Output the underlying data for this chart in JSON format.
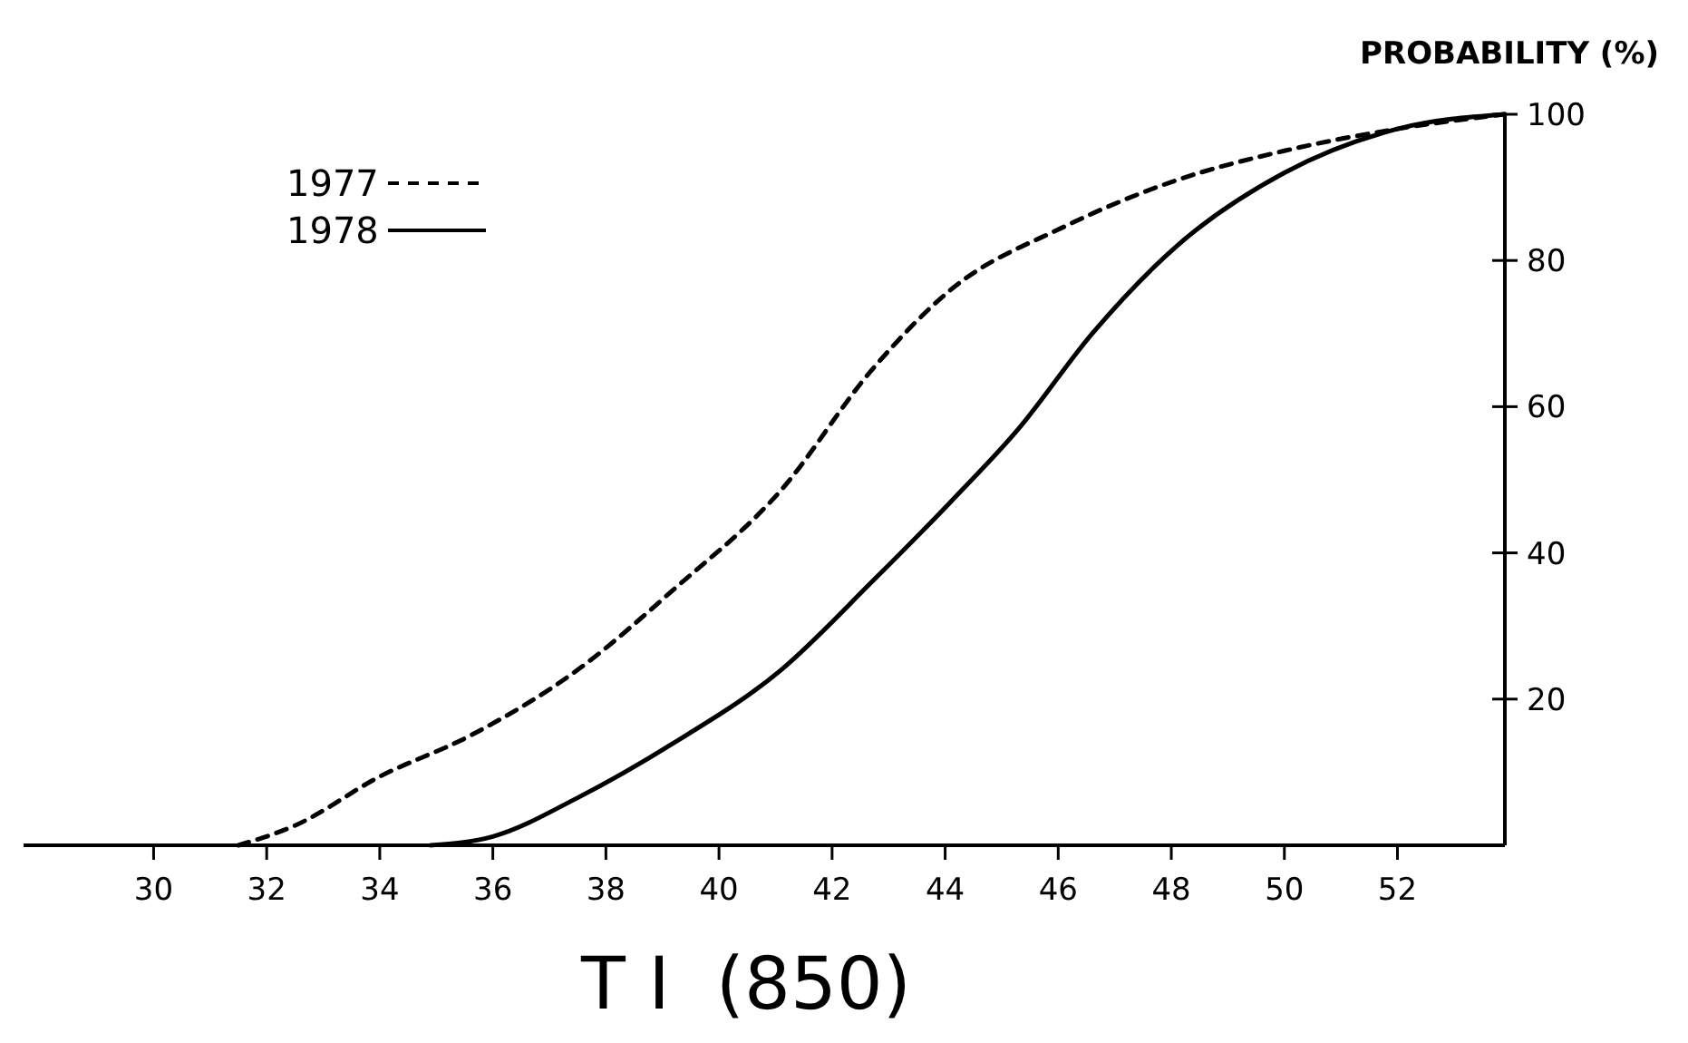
{
  "chart_data": {
    "type": "line",
    "xlabel": "T I  (850)",
    "ylabel": "PROBABILITY (%)",
    "xlim": [
      27.7,
      53.9
    ],
    "xticks": [
      30,
      32,
      34,
      36,
      38,
      40,
      42,
      44,
      46,
      48,
      50,
      52
    ],
    "ylim": [
      0,
      100
    ],
    "yticks": [
      20,
      40,
      60,
      80,
      100
    ],
    "legend": "top left",
    "grid": false,
    "marker": "none",
    "series": [
      {
        "name": "1977",
        "color": "#000000",
        "line_style": "dashed",
        "x": [
          31.5,
          32.5,
          34,
          35.6,
          37.5,
          39.2,
          41.1,
          42.7,
          44.1,
          46.1,
          48.1,
          50,
          52,
          53.9
        ],
        "values": [
          0,
          2.7,
          9.4,
          15,
          24,
          35,
          48.6,
          65,
          76,
          84.6,
          91,
          95,
          98,
          100
        ]
      },
      {
        "name": "1978",
        "color": "#000000",
        "line_style": "solid",
        "x": [
          34.9,
          36,
          37.5,
          39.2,
          41.1,
          42.7,
          44.1,
          45.3,
          46.6,
          48.1,
          50,
          52,
          53.9
        ],
        "values": [
          0,
          1.2,
          6.5,
          14,
          24,
          36,
          47,
          57,
          70,
          82,
          92,
          98,
          100
        ]
      }
    ]
  }
}
